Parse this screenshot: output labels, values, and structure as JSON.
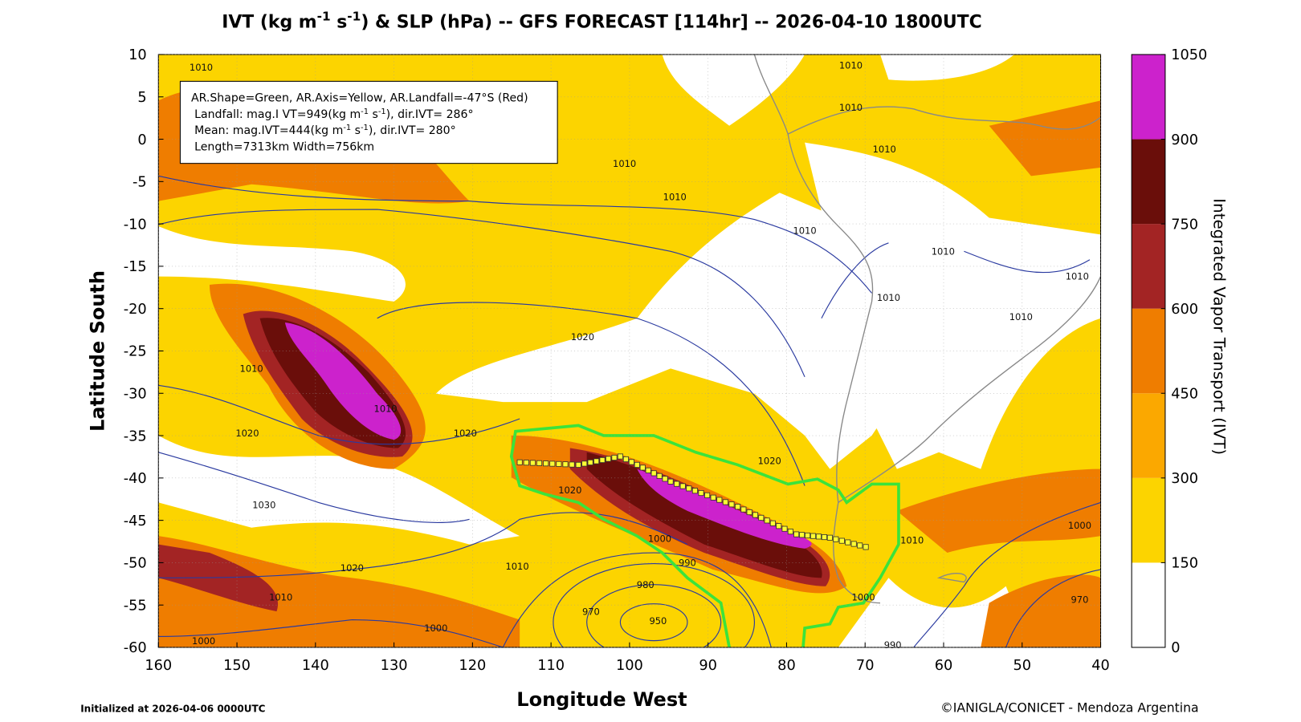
{
  "title": [
    "IVT (kg m",
    "-1",
    " s",
    "-1",
    ") & SLP (hPa) -- GFS FORECAST [114hr] -- 2026-04-10 1800UTC"
  ],
  "x_axis": {
    "label": "Longitude West",
    "lim": [
      160,
      40
    ],
    "ticks": [
      160,
      150,
      140,
      130,
      120,
      110,
      100,
      90,
      80,
      70,
      60,
      50,
      40
    ]
  },
  "y_axis": {
    "label": "Latitude South",
    "lim": [
      10,
      -60
    ],
    "ticks": [
      10,
      5,
      0,
      -5,
      -10,
      -15,
      -20,
      -25,
      -30,
      -35,
      -40,
      -45,
      -50,
      -55,
      -60
    ]
  },
  "info_box": [
    [
      "AR.Shape=Green, AR.Axis=Yellow, AR.Landfall=-47°S (Red)"
    ],
    [
      "Landfall: mag.I VT=949(kg m",
      "-1",
      " s",
      "-1",
      "), dir.IVT= 286°"
    ],
    [
      "Mean: mag.IVT=444(kg m",
      "-1",
      " s",
      "-1",
      "), dir.IVT= 280°"
    ],
    [
      "Length=7313km   Width=756km"
    ]
  ],
  "colorbar": {
    "label": "Integrated Vapor Transport (IVT)",
    "ticks": [
      0,
      150,
      300,
      450,
      600,
      750,
      900,
      1050
    ],
    "colors": [
      "#ffffff",
      "#fcd400",
      "#fba800",
      "#ef7d00",
      "#a32424",
      "#6a0e0a",
      "#cc22cc"
    ]
  },
  "isobar_labels": [
    1010,
    1010,
    1010,
    1010,
    1010,
    1010,
    1010,
    1010,
    1010,
    1010,
    1010,
    1020,
    1010,
    1010,
    1020,
    1020,
    1020,
    1030,
    1020,
    1000,
    990,
    1010,
    1020,
    1010,
    980,
    970,
    950,
    1000,
    1000,
    990,
    1000,
    970,
    1000,
    1010
  ],
  "footer": {
    "initialized": "Initialized at 2026-04-06 0000UTC",
    "credit": "©IANIGLA/CONICET - Mendoza Argentina"
  }
}
